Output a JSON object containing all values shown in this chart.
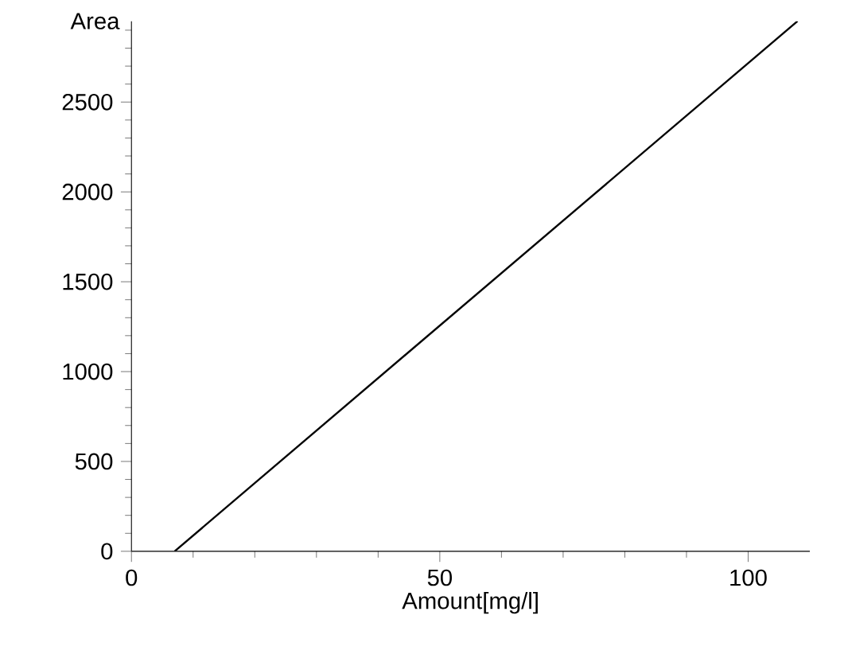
{
  "chart_data": {
    "type": "line",
    "ylabel": "Area",
    "xlabel": "Amount[mg/l]",
    "x": [
      7,
      108
    ],
    "values": [
      0,
      2950
    ],
    "color": "#000000",
    "xlim": [
      0,
      110
    ],
    "ylim": [
      0,
      2950
    ],
    "xticks": [
      0,
      {
        "value": 10,
        "label": null
      },
      {
        "value": 20,
        "label": null
      },
      {
        "value": 30,
        "label": null
      },
      {
        "value": 40,
        "label": null
      },
      50,
      {
        "value": 60,
        "label": null
      },
      {
        "value": 70,
        "label": null
      },
      {
        "value": 80,
        "label": null
      },
      {
        "value": 90,
        "label": null
      },
      100
    ],
    "yticks": [
      0,
      {
        "value": 100,
        "label": null
      },
      {
        "value": 200,
        "label": null
      },
      {
        "value": 300,
        "label": null
      },
      {
        "value": 400,
        "label": null
      },
      500,
      {
        "value": 600,
        "label": null
      },
      {
        "value": 700,
        "label": null
      },
      {
        "value": 800,
        "label": null
      },
      {
        "value": 900,
        "label": null
      },
      1000,
      {
        "value": 1100,
        "label": null
      },
      {
        "value": 1200,
        "label": null
      },
      {
        "value": 1300,
        "label": null
      },
      {
        "value": 1400,
        "label": null
      },
      1500,
      {
        "value": 1600,
        "label": null
      },
      {
        "value": 1700,
        "label": null
      },
      {
        "value": 1800,
        "label": null
      },
      {
        "value": 1900,
        "label": null
      },
      2000,
      {
        "value": 2100,
        "label": null
      },
      {
        "value": 2200,
        "label": null
      },
      {
        "value": 2300,
        "label": null
      },
      {
        "value": 2400,
        "label": null
      },
      2500,
      {
        "value": 2600,
        "label": null
      },
      {
        "value": 2700,
        "label": null
      },
      {
        "value": 2800,
        "label": null
      },
      {
        "value": 2900,
        "label": null
      }
    ],
    "marker": "none",
    "line_style": "solid",
    "grid": false
  }
}
